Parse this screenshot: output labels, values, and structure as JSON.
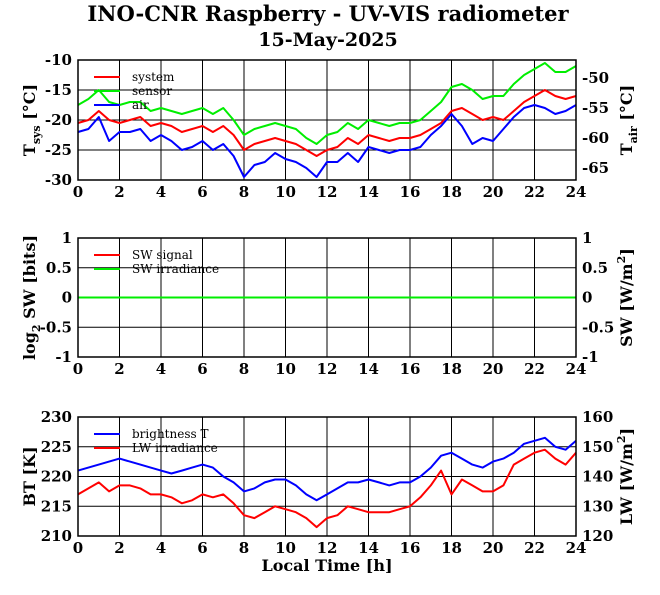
{
  "title": "INO-CNR Raspberry - UV-VIS radiometer",
  "subtitle": "15-May-2025",
  "colors": {
    "red": "#ff0000",
    "green": "#00ee00",
    "blue": "#0000ff"
  },
  "chart_data": [
    {
      "type": "line",
      "x_ticks": [
        "0",
        "2",
        "4",
        "6",
        "8",
        "10",
        "12",
        "14",
        "16",
        "18",
        "20",
        "22",
        "24"
      ],
      "xlim": [
        0,
        24
      ],
      "left_axis": {
        "label_main": "T",
        "label_sub": "sys",
        "label_unit": " [°C]",
        "ylim": [
          -30,
          -10
        ],
        "ticks": [
          "-10",
          "-15",
          "-20",
          "-25",
          "-30"
        ]
      },
      "right_axis": {
        "label_main": "T",
        "label_sub": "air",
        "label_unit": " [°C]",
        "ylim": [
          -67,
          -47
        ],
        "ticks": [
          "-50",
          "-55",
          "-60",
          "-65"
        ]
      },
      "grid": true,
      "legend_position": "top-left",
      "series": [
        {
          "name": "system",
          "color": "#ff0000",
          "axis": "left",
          "x": [
            0,
            0.5,
            1,
            1.5,
            2,
            2.5,
            3,
            3.5,
            4,
            4.5,
            5,
            5.5,
            6,
            6.5,
            7,
            7.5,
            8,
            8.5,
            9,
            9.5,
            10,
            10.5,
            11,
            11.5,
            12,
            12.5,
            13,
            13.5,
            14,
            14.5,
            15,
            15.5,
            16,
            16.5,
            17,
            17.5,
            18,
            18.5,
            19,
            19.5,
            20,
            20.5,
            21,
            21.5,
            22,
            22.5,
            23,
            23.5,
            24
          ],
          "y": [
            -20.5,
            -20,
            -18.5,
            -20,
            -20.5,
            -20,
            -19.5,
            -21,
            -20.5,
            -21,
            -22,
            -21.5,
            -21,
            -22,
            -21,
            -22.5,
            -25,
            -24,
            -23.5,
            -23,
            -23.5,
            -24,
            -25,
            -26,
            -25,
            -24.5,
            -23,
            -24,
            -22.5,
            -23,
            -23.5,
            -23,
            -23,
            -22.5,
            -21.5,
            -20.5,
            -18.5,
            -18,
            -19,
            -20,
            -19.5,
            -20,
            -18.5,
            -17,
            -16,
            -15,
            -16,
            -16.5,
            -16
          ]
        },
        {
          "name": "sensor",
          "color": "#00ee00",
          "axis": "left",
          "x": [
            0,
            0.5,
            1,
            1.5,
            2,
            2.5,
            3,
            3.5,
            4,
            4.5,
            5,
            5.5,
            6,
            6.5,
            7,
            7.5,
            8,
            8.5,
            9,
            9.5,
            10,
            10.5,
            11,
            11.5,
            12,
            12.5,
            13,
            13.5,
            14,
            14.5,
            15,
            15.5,
            16,
            16.5,
            17,
            17.5,
            18,
            18.5,
            19,
            19.5,
            20,
            20.5,
            21,
            21.5,
            22,
            22.5,
            23,
            23.5,
            24
          ],
          "y": [
            -17.5,
            -16.5,
            -15,
            -17,
            -17.5,
            -17,
            -17,
            -18.5,
            -18,
            -18.5,
            -19,
            -18.5,
            -18,
            -19,
            -18,
            -20,
            -22.5,
            -21.5,
            -21,
            -20.5,
            -21,
            -21.5,
            -23,
            -24,
            -22.5,
            -22,
            -20.5,
            -21.5,
            -20,
            -20.5,
            -21,
            -20.5,
            -20.5,
            -20,
            -18.5,
            -17,
            -14.5,
            -14,
            -15,
            -16.5,
            -16,
            -16,
            -14,
            -12.5,
            -11.5,
            -10.5,
            -12,
            -12,
            -11
          ]
        },
        {
          "name": "air",
          "color": "#0000ff",
          "axis": "right",
          "x": [
            0,
            0.5,
            1,
            1.5,
            2,
            2.5,
            3,
            3.5,
            4,
            4.5,
            5,
            5.5,
            6,
            6.5,
            7,
            7.5,
            8,
            8.5,
            9,
            9.5,
            10,
            10.5,
            11,
            11.5,
            12,
            12.5,
            13,
            13.5,
            14,
            14.5,
            15,
            15.5,
            16,
            16.5,
            17,
            17.5,
            18,
            18.5,
            19,
            19.5,
            20,
            20.5,
            21,
            21.5,
            22,
            22.5,
            23,
            23.5,
            24
          ],
          "y": [
            -59,
            -58.5,
            -56.5,
            -60.5,
            -59,
            -59,
            -58.5,
            -60.5,
            -59.5,
            -60.5,
            -62,
            -61.5,
            -60.5,
            -62,
            -61,
            -63,
            -66.5,
            -64.5,
            -64,
            -62.5,
            -63.5,
            -64,
            -65,
            -66.5,
            -64,
            -64,
            -62.5,
            -64,
            -61.5,
            -62,
            -62.5,
            -62,
            -62,
            -61.5,
            -59.5,
            -58,
            -56,
            -58,
            -61,
            -60,
            -60.5,
            -58.5,
            -56.5,
            -55,
            -54.5,
            -55,
            -56,
            -55.5,
            -54.5
          ]
        }
      ]
    },
    {
      "type": "line",
      "x_ticks": [
        "0",
        "2",
        "4",
        "6",
        "8",
        "10",
        "12",
        "14",
        "16",
        "18",
        "20",
        "22",
        "24"
      ],
      "xlim": [
        0,
        24
      ],
      "left_axis": {
        "label_pre": "log",
        "label_sub": "2",
        "label_main": " SW [bits]",
        "ylim": [
          -1,
          1
        ],
        "ticks": [
          "1",
          "0.5",
          "0",
          "-0.5",
          "-1"
        ]
      },
      "right_axis": {
        "label_main": "SW [W/m",
        "label_sup": "2",
        "label_unit": "]",
        "ylim": [
          -1,
          1
        ],
        "ticks": [
          "1",
          "0.5",
          "0",
          "-0.5",
          "-1"
        ]
      },
      "grid": true,
      "legend_position": "top-left",
      "series": [
        {
          "name": "SW signal",
          "color": "#ff0000",
          "axis": "left",
          "x": [
            0,
            24
          ],
          "y": [
            0,
            0
          ]
        },
        {
          "name": "SW irradiance",
          "color": "#00ee00",
          "axis": "right",
          "x": [
            0,
            24
          ],
          "y": [
            0,
            0
          ]
        }
      ]
    },
    {
      "type": "line",
      "x_ticks": [
        "0",
        "2",
        "4",
        "6",
        "8",
        "10",
        "12",
        "14",
        "16",
        "18",
        "20",
        "22",
        "24"
      ],
      "xlim": [
        0,
        24
      ],
      "xlabel": "Local Time [h]",
      "left_axis": {
        "label_main": "BT [K]",
        "ylim": [
          210,
          230
        ],
        "ticks": [
          "230",
          "225",
          "220",
          "215",
          "210"
        ]
      },
      "right_axis": {
        "label_main": "LW [W/m",
        "label_sup": "2",
        "label_unit": "]",
        "ylim": [
          120,
          160
        ],
        "ticks": [
          "160",
          "150",
          "140",
          "130",
          "120"
        ]
      },
      "grid": true,
      "legend_position": "top-left",
      "series": [
        {
          "name": "brightness T",
          "color": "#0000ff",
          "axis": "left",
          "x": [
            0,
            0.5,
            1,
            1.5,
            2,
            2.5,
            3,
            3.5,
            4,
            4.5,
            5,
            5.5,
            6,
            6.5,
            7,
            7.5,
            8,
            8.5,
            9,
            9.5,
            10,
            10.5,
            11,
            11.5,
            12,
            12.5,
            13,
            13.5,
            14,
            14.5,
            15,
            15.5,
            16,
            16.5,
            17,
            17.5,
            18,
            18.5,
            19,
            19.5,
            20,
            20.5,
            21,
            21.5,
            22,
            22.5,
            23,
            23.5,
            24
          ],
          "y": [
            221,
            221.5,
            222,
            222.5,
            223,
            222.5,
            222,
            221.5,
            221,
            220.5,
            221,
            221.5,
            222,
            221.5,
            220,
            219,
            217.5,
            218,
            219,
            219.5,
            219.5,
            218.5,
            217,
            216,
            217,
            218,
            219,
            219,
            219.5,
            219,
            218.5,
            219,
            219,
            220,
            221.5,
            223.5,
            224,
            223,
            222,
            221.5,
            222.5,
            223,
            224,
            225.5,
            226,
            226.5,
            225,
            224.5,
            226
          ]
        },
        {
          "name": "LW irradiance",
          "color": "#ff0000",
          "axis": "right",
          "x": [
            0,
            0.5,
            1,
            1.5,
            2,
            2.5,
            3,
            3.5,
            4,
            4.5,
            5,
            5.5,
            6,
            6.5,
            7,
            7.5,
            8,
            8.5,
            9,
            9.5,
            10,
            10.5,
            11,
            11.5,
            12,
            12.5,
            13,
            13.5,
            14,
            14.5,
            15,
            15.5,
            16,
            16.5,
            17,
            17.5,
            18,
            18.5,
            19,
            19.5,
            20,
            20.5,
            21,
            21.5,
            22,
            22.5,
            23,
            23.5,
            24
          ],
          "y": [
            134,
            136,
            138,
            135,
            137,
            137,
            136,
            134,
            134,
            133,
            131,
            132,
            134,
            133,
            134,
            131,
            127,
            126,
            128,
            130,
            129,
            128,
            126,
            123,
            126,
            127,
            130,
            129,
            128,
            128,
            128,
            129,
            130,
            133,
            137,
            142,
            134,
            139,
            137,
            135,
            135,
            137,
            144,
            146,
            148,
            149,
            146,
            144,
            148
          ]
        }
      ]
    }
  ]
}
